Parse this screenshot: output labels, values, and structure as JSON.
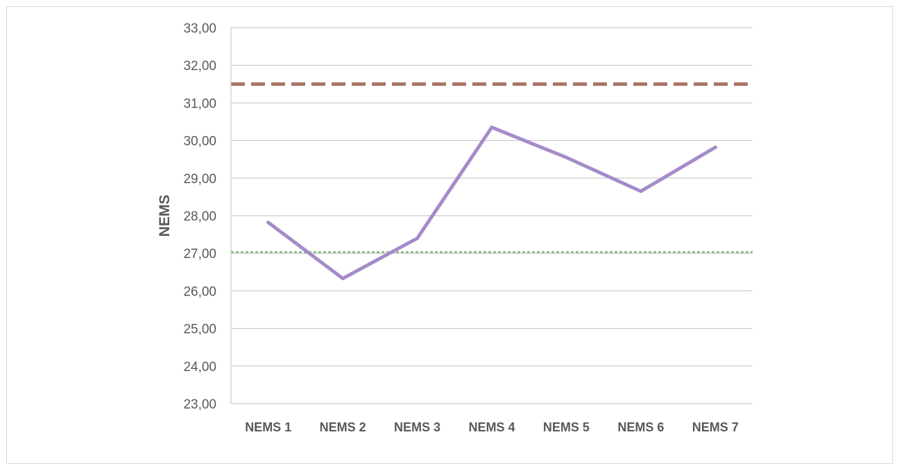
{
  "chart_data": {
    "type": "line",
    "title": "",
    "xlabel": "",
    "ylabel": "NEMS",
    "ylim": [
      23,
      33
    ],
    "y_ticks": [
      "23,00",
      "24,00",
      "25,00",
      "26,00",
      "27,00",
      "28,00",
      "29,00",
      "30,00",
      "31,00",
      "32,00",
      "33,00"
    ],
    "categories": [
      "NEMS 1",
      "NEMS 2",
      "NEMS 3",
      "NEMS 4",
      "NEMS 5",
      "NEMS 6",
      "NEMS 7"
    ],
    "series": [
      {
        "values": [
          27.82,
          26.33,
          27.4,
          30.35,
          29.55,
          28.65,
          29.82
        ],
        "color": "#a58bc8",
        "style": "solid"
      }
    ],
    "reference_lines": [
      {
        "value": 31.5,
        "color": "#a87264",
        "style": "dashed"
      },
      {
        "value": 27.03,
        "color": "#8fbf8a",
        "style": "dotted"
      }
    ],
    "grid": true,
    "legend": "none"
  }
}
